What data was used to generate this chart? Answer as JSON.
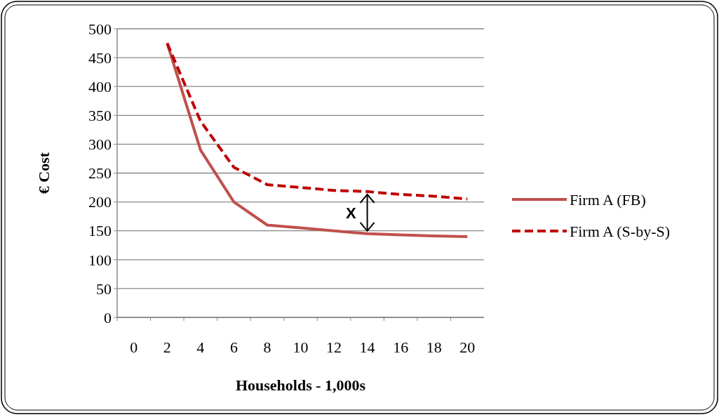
{
  "chart_data": {
    "type": "line",
    "xlabel": "Households - 1,000s",
    "ylabel": "€ Cost",
    "categories": [
      "0",
      "2",
      "4",
      "6",
      "8",
      "10",
      "12",
      "14",
      "16",
      "18",
      "20"
    ],
    "series": [
      {
        "name": "Firm A (FB)",
        "color": "#c0504d",
        "line_style": "solid",
        "values": [
          null,
          475,
          290,
          200,
          160,
          155,
          150,
          145,
          143,
          141,
          140
        ]
      },
      {
        "name": "Firm A (S-by-S)",
        "color": "#c00000",
        "line_style": "dashed",
        "values": [
          null,
          475,
          340,
          260,
          230,
          225,
          220,
          218,
          213,
          210,
          205
        ]
      }
    ],
    "ylim": [
      0,
      500
    ],
    "yticks": [
      0,
      50,
      100,
      150,
      200,
      250,
      300,
      350,
      400,
      450,
      500
    ],
    "grid": "y",
    "legend": "right",
    "marker": "none",
    "annotations": [
      "X"
    ]
  }
}
